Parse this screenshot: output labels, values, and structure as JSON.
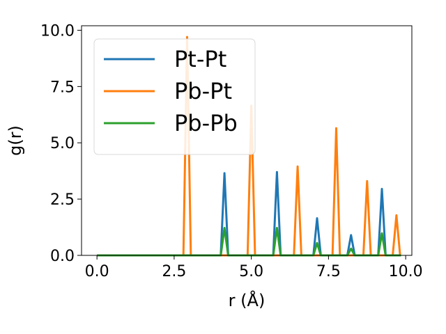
{
  "chart_data": {
    "type": "line",
    "title": "",
    "xlabel": "r (Å)",
    "ylabel": "g(r)",
    "xlim": [
      -0.5,
      10.2
    ],
    "ylim": [
      0.0,
      10.2
    ],
    "xticks": [
      "0.0",
      "2.5",
      "5.0",
      "7.5",
      "10.0"
    ],
    "yticks": [
      "0.0",
      "2.5",
      "5.0",
      "7.5",
      "10.0"
    ],
    "xtick_values": [
      0.0,
      2.5,
      5.0,
      7.5,
      10.0
    ],
    "ytick_values": [
      0.0,
      2.5,
      5.0,
      7.5,
      10.0
    ],
    "grid": false,
    "legend_position": "upper-left",
    "x_range": [
      0.0,
      9.85
    ],
    "peak_half_width": 0.12,
    "series": [
      {
        "name": "Pt-Pt",
        "color": "#1f77b4",
        "peaks": [
          {
            "x": 4.13,
            "y": 3.65
          },
          {
            "x": 5.83,
            "y": 3.7
          },
          {
            "x": 7.13,
            "y": 1.65
          },
          {
            "x": 8.23,
            "y": 0.9
          },
          {
            "x": 9.23,
            "y": 2.95
          }
        ]
      },
      {
        "name": "Pb-Pt",
        "color": "#ff7f0e",
        "peaks": [
          {
            "x": 2.92,
            "y": 9.7
          },
          {
            "x": 5.0,
            "y": 6.65
          },
          {
            "x": 6.5,
            "y": 3.95
          },
          {
            "x": 7.75,
            "y": 5.65
          },
          {
            "x": 8.75,
            "y": 3.3
          },
          {
            "x": 9.7,
            "y": 1.78
          }
        ]
      },
      {
        "name": "Pb-Pb",
        "color": "#2ca02c",
        "peaks": [
          {
            "x": 4.13,
            "y": 1.22
          },
          {
            "x": 5.83,
            "y": 1.22
          },
          {
            "x": 7.13,
            "y": 0.55
          },
          {
            "x": 8.23,
            "y": 0.3
          },
          {
            "x": 9.23,
            "y": 0.98
          }
        ]
      }
    ]
  }
}
